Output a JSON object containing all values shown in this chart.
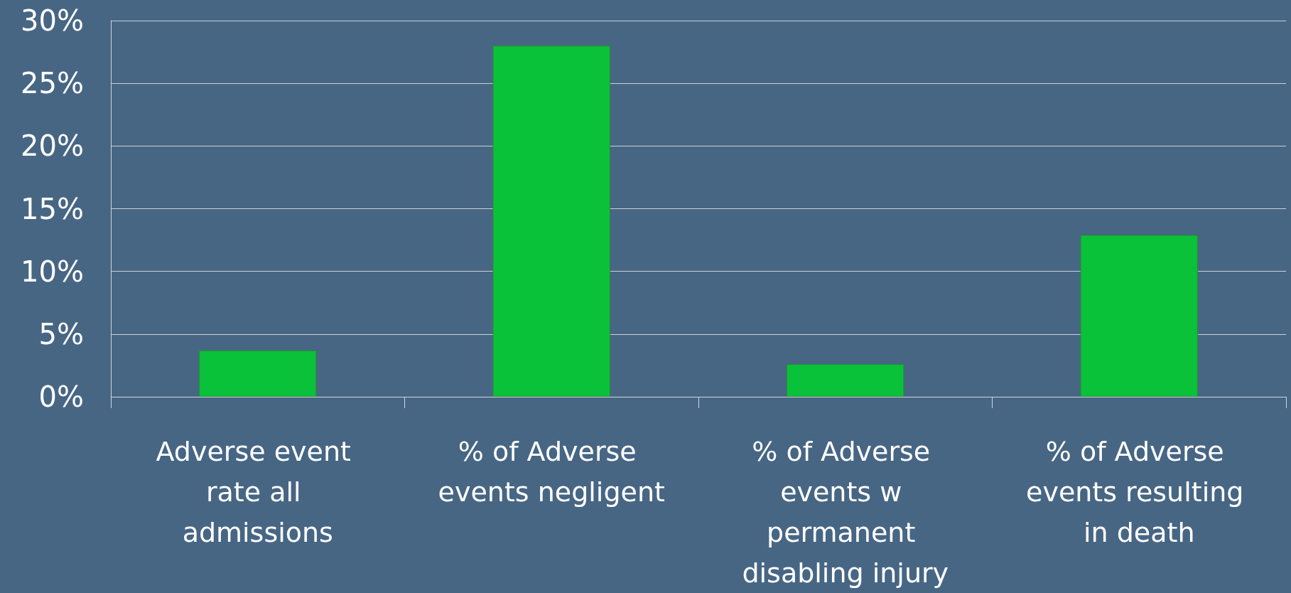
{
  "chart_data": {
    "type": "bar",
    "categories": [
      "Adverse event rate all admissions",
      "% of Adverse events negligent",
      "% of Adverse events w permanent disabling injury",
      "% of Adverse events resulting in death"
    ],
    "values": [
      3.7,
      28,
      2.6,
      12.9
    ],
    "color": "#0ac13a",
    "ylim": [
      0,
      30
    ],
    "yticks": [
      {
        "value": 0,
        "label": "0%"
      },
      {
        "value": 5,
        "label": "5%"
      },
      {
        "value": 10,
        "label": "10%"
      },
      {
        "value": 15,
        "label": "15%"
      },
      {
        "value": 20,
        "label": "20%"
      },
      {
        "value": 25,
        "label": "25%"
      },
      {
        "value": 30,
        "label": "30%"
      }
    ],
    "grid": "y"
  }
}
